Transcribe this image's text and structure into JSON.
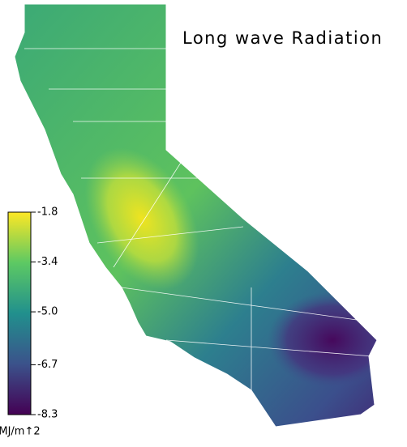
{
  "map": {
    "title": "Long wave Radiation",
    "colorbar": {
      "label": "MJ/m↑2",
      "range": [
        -8.3,
        -1.8
      ],
      "ticks": [
        -1.8,
        -3.4,
        {
          "value": -5,
          "label": "-5.0"
        },
        -6.7,
        -8.3
      ]
    }
  }
}
